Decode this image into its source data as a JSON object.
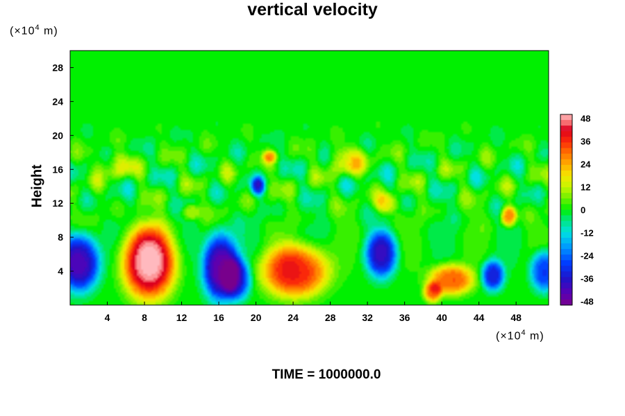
{
  "chart_data": {
    "type": "heatmap",
    "title": "vertical velocity",
    "ylabel": "Height",
    "y_unit": "(×10⁴ m)",
    "x_unit": "(×10⁴ m)",
    "footer": "TIME = 1000000.0",
    "xlim": [
      0,
      51.5
    ],
    "ylim": [
      0,
      30
    ],
    "x_ticks": [
      "4",
      "8",
      "12",
      "16",
      "20",
      "24",
      "28",
      "32",
      "36",
      "40",
      "44",
      "48"
    ],
    "y_ticks": [
      "4",
      "8",
      "12",
      "16",
      "20",
      "24",
      "28"
    ],
    "colorbar": {
      "range": [
        -50,
        50
      ],
      "ticks": [
        "48",
        "36",
        "24",
        "12",
        "0",
        "-12",
        "-24",
        "-36",
        "-48"
      ]
    },
    "features": [
      {
        "x": 8.5,
        "y": 5.0,
        "value": 50,
        "sx": 2.4,
        "sy": 3.6
      },
      {
        "x": 24.2,
        "y": 4.0,
        "value": 38,
        "sx": 3.0,
        "sy": 2.6
      },
      {
        "x": 41.0,
        "y": 3.0,
        "value": 32,
        "sx": 2.0,
        "sy": 1.5
      },
      {
        "x": 39.0,
        "y": 1.5,
        "value": 28,
        "sx": 0.8,
        "sy": 1.0
      },
      {
        "x": 47.2,
        "y": 10.5,
        "value": 30,
        "sx": 0.7,
        "sy": 1.0
      },
      {
        "x": 1.0,
        "y": 5.0,
        "value": -44,
        "sx": 1.8,
        "sy": 2.8
      },
      {
        "x": 16.2,
        "y": 4.5,
        "value": -48,
        "sx": 1.6,
        "sy": 3.3
      },
      {
        "x": 18.0,
        "y": 3.0,
        "value": -30,
        "sx": 1.2,
        "sy": 2.0
      },
      {
        "x": 33.5,
        "y": 6.0,
        "value": -36,
        "sx": 1.4,
        "sy": 2.3
      },
      {
        "x": 45.5,
        "y": 3.5,
        "value": -34,
        "sx": 1.0,
        "sy": 1.5
      },
      {
        "x": 51.0,
        "y": 4.0,
        "value": -30,
        "sx": 1.2,
        "sy": 2.0
      },
      {
        "x": 20.2,
        "y": 14.0,
        "value": -26,
        "sx": 0.6,
        "sy": 0.9
      },
      {
        "x": 21.5,
        "y": 17.5,
        "value": 20,
        "sx": 0.6,
        "sy": 0.6
      },
      {
        "x": 13.0,
        "y": 11.0,
        "value": 14,
        "sx": 0.8,
        "sy": 0.8
      },
      {
        "x": 34.0,
        "y": 12.0,
        "value": 18,
        "sx": 1.0,
        "sy": 1.0
      },
      {
        "x": 30.0,
        "y": 17.0,
        "value": 14,
        "sx": 1.8,
        "sy": 1.4
      },
      {
        "x": 5.0,
        "y": 16.5,
        "value": 12,
        "sx": 1.6,
        "sy": 1.2
      }
    ]
  }
}
